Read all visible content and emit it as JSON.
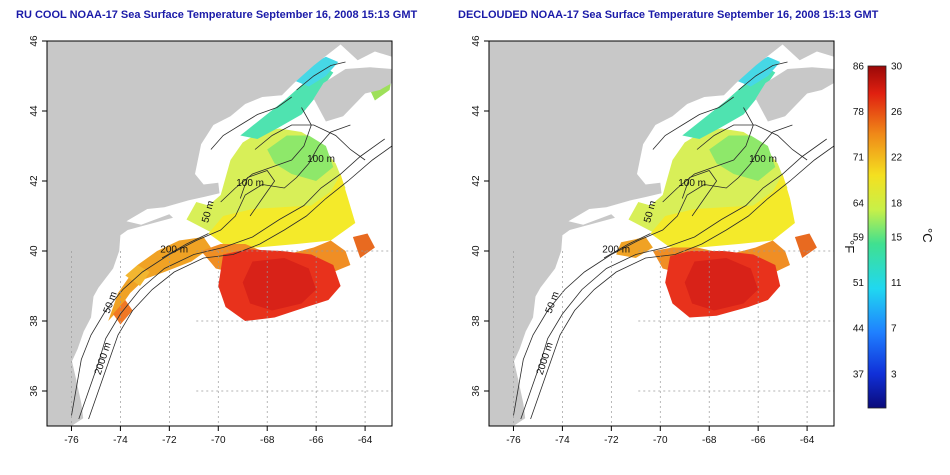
{
  "panels": [
    {
      "title": "RU COOL NOAA-17 Sea Surface Temperature September 16, 2008 15:13 GMT",
      "variant": "raw",
      "contour_labels": [
        "100 m",
        "100 m",
        "50 m",
        "200 m",
        "50 m",
        "2000 m"
      ]
    },
    {
      "title": "DECLOUDED NOAA-17 Sea Surface Temperature September 16, 2008 15:13 GMT",
      "variant": "declouded",
      "contour_labels": [
        "100 m",
        "100 m",
        "50 m",
        "200 m",
        "50 m",
        "2000 m"
      ]
    }
  ],
  "axes": {
    "x_ticks": [
      -76,
      -74,
      -72,
      -70,
      -68,
      -66,
      -64
    ],
    "x_tick_labels": [
      "-76",
      "-74",
      "-72",
      "-70",
      "-68",
      "-66",
      "-64"
    ],
    "y_ticks": [
      36,
      38,
      40,
      42,
      44,
      46
    ],
    "y_tick_labels": [
      "36",
      "38",
      "40",
      "42",
      "44",
      "46"
    ],
    "xlim": [
      -77.0,
      -62.9
    ],
    "ylim": [
      35.0,
      46.0
    ],
    "grid_lines_x": [
      -76,
      -74,
      -72,
      -70,
      -68,
      -66,
      -64
    ],
    "grid_lines_y": [
      36,
      38,
      40
    ]
  },
  "colorbar": {
    "fahrenheit_labels": [
      "86",
      "78",
      "71",
      "64",
      "59",
      "51",
      "44",
      "37"
    ],
    "celsius_labels": [
      "30",
      "26",
      "22",
      "18",
      "15",
      "11",
      "7",
      "3"
    ],
    "celsius_values": [
      30,
      26,
      22,
      18,
      15,
      11,
      7,
      3
    ],
    "range_c": [
      0,
      30
    ],
    "fahrenheit_unit": "°F",
    "celsius_unit": "°C"
  },
  "colors": {
    "land": "#c8c8c8",
    "title": "#1a1aa8",
    "grid": "#9a9a9a",
    "contour": "#2b2b2b"
  }
}
